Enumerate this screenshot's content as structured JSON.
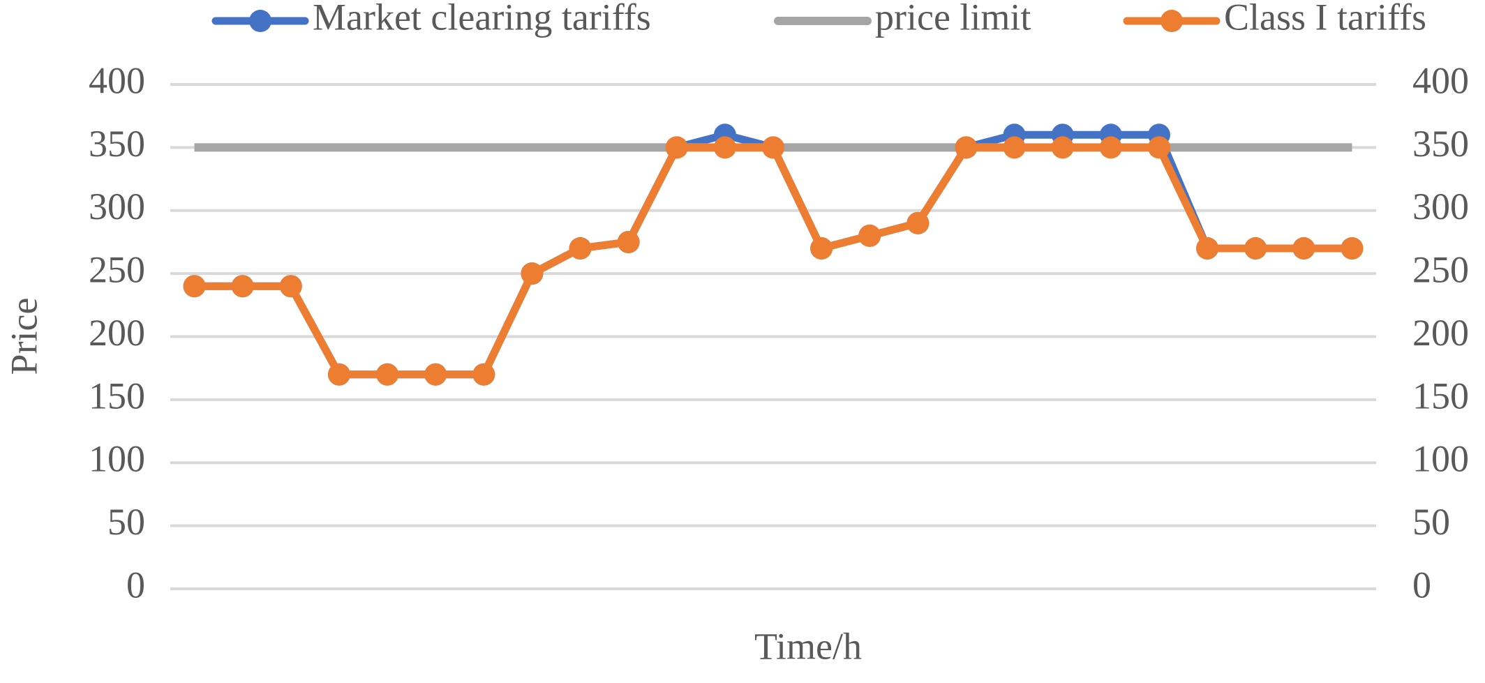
{
  "chart_data": {
    "type": "line",
    "xlabel": "Time/h",
    "ylabel": "Price",
    "categories": [
      null,
      null,
      null,
      null,
      null,
      null,
      null,
      null,
      null,
      null,
      null,
      null,
      null,
      null,
      null,
      null,
      null,
      null,
      null,
      null,
      null,
      null,
      null,
      null,
      null
    ],
    "series": [
      {
        "name": "Market clearing tariffs",
        "color": "#4472c4",
        "marker": true,
        "values": [
          240,
          240,
          240,
          170,
          170,
          170,
          170,
          250,
          270,
          275,
          350,
          360,
          350,
          270,
          280,
          290,
          350,
          360,
          360,
          360,
          360,
          270,
          270,
          270,
          270
        ]
      },
      {
        "name": "price limit",
        "color": "#a5a5a5",
        "marker": false,
        "axis": "y2",
        "values": [
          350,
          350,
          350,
          350,
          350,
          350,
          350,
          350,
          350,
          350,
          350,
          350,
          350,
          350,
          350,
          350,
          350,
          350,
          350,
          350,
          350,
          350,
          350,
          350,
          350
        ]
      },
      {
        "name": "Class I tariffs",
        "color": "#ed7d31",
        "marker": true,
        "values": [
          240,
          240,
          240,
          170,
          170,
          170,
          170,
          250,
          270,
          275,
          350,
          350,
          350,
          270,
          280,
          290,
          350,
          350,
          350,
          350,
          350,
          270,
          270,
          270,
          270
        ]
      }
    ],
    "ylim": [
      0,
      400
    ],
    "yticks": [
      0,
      50,
      100,
      150,
      200,
      250,
      300,
      350,
      400
    ],
    "y2lim": [
      0,
      400
    ],
    "y2ticks": [
      0,
      50,
      100,
      150,
      200,
      250,
      300,
      350,
      400
    ],
    "grid": true,
    "legend": "top"
  }
}
